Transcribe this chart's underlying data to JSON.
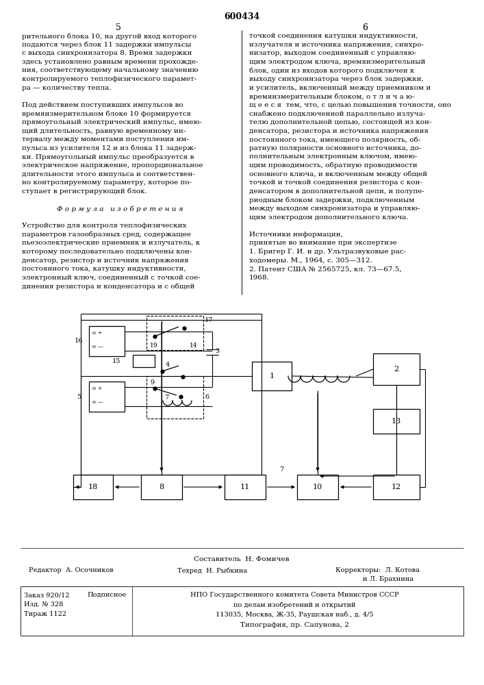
{
  "patent_number": "600434",
  "bg": "#ffffff",
  "fg": "#000000",
  "left_col": [
    "рительного блока 10, на другой вход которого",
    "подаются через блок 11 задержки импульсы",
    "с выхода синхронизатора 8. Время задержки",
    "здесь установлено равным времени прохожде-",
    "ния, соответствующему начальному значению",
    "контролируемого теплофизического парамет-",
    "ра — количеству тепла.",
    "",
    "Под действием поступивших импульсов во",
    "времяизмерительном блоке 10 формируется",
    "прямоугольный электрический импульс, имею-",
    "щий длительность, равную временному ин-",
    "тервалу между моментами поступления им-",
    "пульса из усилителя 12 и из блока 11 задерж-",
    "ки. Прямоугольный импульс преобразуется в",
    "электрическое напряжение, пропорциональное",
    "длительности этого импульса и соответствен-",
    "но контролируемому параметру, которое по-",
    "ступает в регистрирующий блок.",
    "",
    "Ф о р м у л а   и з о б р е т е н и я",
    "",
    "Устройство для контроля теплофизических",
    "параметров газообразных сред, содержащее",
    "пьезоэлектрические приемник и излучатель, к",
    "которому последовательно подключены кон-",
    "денсатор, резистор и источник напряжения",
    "постоянного тока, катушку индуктивности,",
    "электронный ключ, соединенный с точкой сое-",
    "динения резистора и конденсатора и с общей"
  ],
  "right_col": [
    "точкой соединения катушки индуктивности,",
    "излучателя и источника напряжения, синхро-",
    "низатор, выходом соединенный с управляю-",
    "щим электродом ключа, времяизмерительный",
    "блок, один из входов которого подключен к",
    "выходу синхронизатора через блок задержки,",
    "и усилитель, включенный между приемником и",
    "времяизмерительным блоком, о т л и ч а ю-",
    "щ е е с я  тем, что, с целью повышения точности, оно",
    "снабжено подключенной параллельно излуча-",
    "телю дополнительной цепью, состоящей из кон-",
    "денсатора, резистора и источника напряжения",
    "постоянного тока, имеющего полярность, об-",
    "ратную полярности основного источника, до-",
    "полнительным электронным ключом, имею-",
    "щим проводимость, обратную проводимости",
    "основного ключа, и включенным между общей",
    "точкой и точкой соединения резистора с кон-",
    "денсатором в дополнительной цепи, и полупе-",
    "риодным блоком задержки, подключенным",
    "между выходом синхронизатора и управляю-",
    "щим электродом дополнительного ключа.",
    "",
    "Источники информации,",
    "принятые во внимание при экспертизе",
    "1. Бригер Г. И. и др. Ультразвуковые рас-",
    "ходомеры. М., 1964, с. 305—312.",
    "2. Патент США № 2565725, кл. 73—67.5,",
    "1968."
  ]
}
